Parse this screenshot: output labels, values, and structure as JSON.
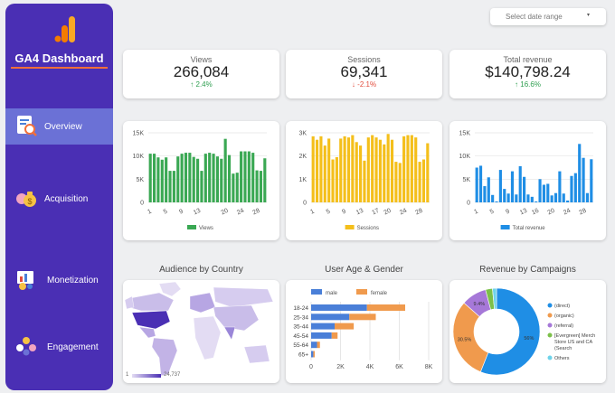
{
  "sidebar": {
    "title": "GA4 Dashboard",
    "items": [
      {
        "label": "Overview"
      },
      {
        "label": "Acquisition"
      },
      {
        "label": "Monetization"
      },
      {
        "label": "Engagement"
      }
    ]
  },
  "header": {
    "date_range_placeholder": "Select date range",
    "dropdown_glyph": "▾"
  },
  "kpis": [
    {
      "name": "Views",
      "value": "266,084",
      "delta": "2.4%",
      "direction": "up"
    },
    {
      "name": "Sessions",
      "value": "69,341",
      "delta": "-2.1%",
      "direction": "down"
    },
    {
      "name": "Total revenue",
      "value": "$140,798.24",
      "delta": "16.6%",
      "direction": "up"
    }
  ],
  "sections": {
    "country_title": "Audience by Country",
    "age_title": "User Age & Gender",
    "campaign_title": "Revenue by Campaigns"
  },
  "map": {
    "legend_min": "1",
    "legend_max": "24,737",
    "color_low": "#e3dcf3",
    "color_high": "#4a2fb4"
  },
  "colors": {
    "sidebar": "#4a2fb4",
    "active": "#6b71d6",
    "views": "#3aa853",
    "sessions": "#f4bf1b",
    "revenue": "#1f8ee5",
    "male": "#4a7fd8",
    "female": "#f09a4d"
  },
  "chart_data": [
    {
      "type": "bar",
      "series": [
        {
          "name": "Views",
          "values": [
            10500,
            10500,
            9700,
            9200,
            9700,
            6800,
            6800,
            9900,
            10500,
            10700,
            10700,
            9800,
            9400,
            6800,
            10500,
            10700,
            10500,
            9900,
            9400,
            13700,
            10200,
            6200,
            6400,
            11000,
            11000,
            11000,
            10700,
            6900,
            6800,
            9500
          ]
        }
      ],
      "x": [
        "1",
        "2",
        "3",
        "4",
        "5",
        "6",
        "7",
        "8",
        "9",
        "10",
        "11",
        "12",
        "13",
        "14",
        "15",
        "16",
        "17",
        "18",
        "19",
        "20",
        "21",
        "22",
        "23",
        "24",
        "25",
        "26",
        "27",
        "28",
        "29",
        "30"
      ],
      "xticks": [
        "1",
        "5",
        "9",
        "13",
        "20",
        "24",
        "28"
      ],
      "yticks": [
        "0",
        "5K",
        "10K",
        "15K"
      ],
      "ylim": [
        0,
        15000
      ],
      "legend": "Views"
    },
    {
      "type": "bar",
      "series": [
        {
          "name": "Sessions",
          "values": [
            2850,
            2700,
            2850,
            2450,
            2750,
            1850,
            1950,
            2750,
            2850,
            2800,
            2900,
            2600,
            2450,
            1800,
            2800,
            2900,
            2800,
            2700,
            2500,
            2950,
            2700,
            1750,
            1700,
            2850,
            2900,
            2900,
            2800,
            1750,
            1850,
            2550
          ]
        }
      ],
      "x": [
        "1",
        "2",
        "3",
        "4",
        "5",
        "6",
        "7",
        "8",
        "9",
        "10",
        "11",
        "12",
        "13",
        "14",
        "15",
        "16",
        "17",
        "18",
        "19",
        "20",
        "21",
        "22",
        "23",
        "24",
        "25",
        "26",
        "27",
        "28",
        "29",
        "30"
      ],
      "xticks": [
        "1",
        "5",
        "9",
        "13",
        "17",
        "20",
        "24",
        "28"
      ],
      "yticks": [
        "0",
        "1K",
        "2K",
        "3K"
      ],
      "ylim": [
        0,
        3000
      ],
      "legend": "Sessions"
    },
    {
      "type": "bar",
      "series": [
        {
          "name": "Total revenue",
          "values": [
            7500,
            7900,
            3500,
            5400,
            1600,
            200,
            7000,
            2900,
            1900,
            6700,
            1700,
            7800,
            5500,
            1700,
            1200,
            200,
            5000,
            3800,
            4000,
            1500,
            2000,
            6700,
            1900,
            400,
            5700,
            6300,
            12600,
            9600,
            2000,
            9300
          ]
        }
      ],
      "x": [
        "1",
        "2",
        "3",
        "4",
        "5",
        "6",
        "7",
        "8",
        "9",
        "10",
        "11",
        "12",
        "13",
        "14",
        "15",
        "16",
        "17",
        "18",
        "19",
        "20",
        "21",
        "22",
        "23",
        "24",
        "25",
        "26",
        "27",
        "28",
        "29",
        "30"
      ],
      "xticks": [
        "1",
        "5",
        "9",
        "13",
        "16",
        "20",
        "24",
        "28"
      ],
      "yticks": [
        "0",
        "5K",
        "10K",
        "15K"
      ],
      "ylim": [
        0,
        15000
      ],
      "legend": "Total revenue"
    },
    {
      "type": "bar",
      "orientation": "horizontal",
      "stacked": true,
      "categories": [
        "18-24",
        "25-34",
        "35-44",
        "45-54",
        "55-64",
        "65+"
      ],
      "series": [
        {
          "name": "male",
          "values": [
            3800,
            2600,
            1600,
            1400,
            400,
            150
          ]
        },
        {
          "name": "female",
          "values": [
            2600,
            1800,
            1300,
            400,
            200,
            100
          ]
        }
      ],
      "xticks": [
        "0",
        "2K",
        "4K",
        "6K",
        "8K"
      ],
      "xlim": [
        0,
        8000
      ]
    },
    {
      "type": "pie",
      "style": "donut",
      "labels": [
        "(direct)",
        "(organic)",
        "(referral)",
        "[Evergreen] Merch Store US and CA (Search",
        "Others"
      ],
      "values": [
        56.0,
        30.5,
        9.4,
        2.6,
        1.5
      ],
      "slice_labels": [
        "56%",
        "30.5%",
        "9.4%",
        "",
        ""
      ]
    }
  ]
}
